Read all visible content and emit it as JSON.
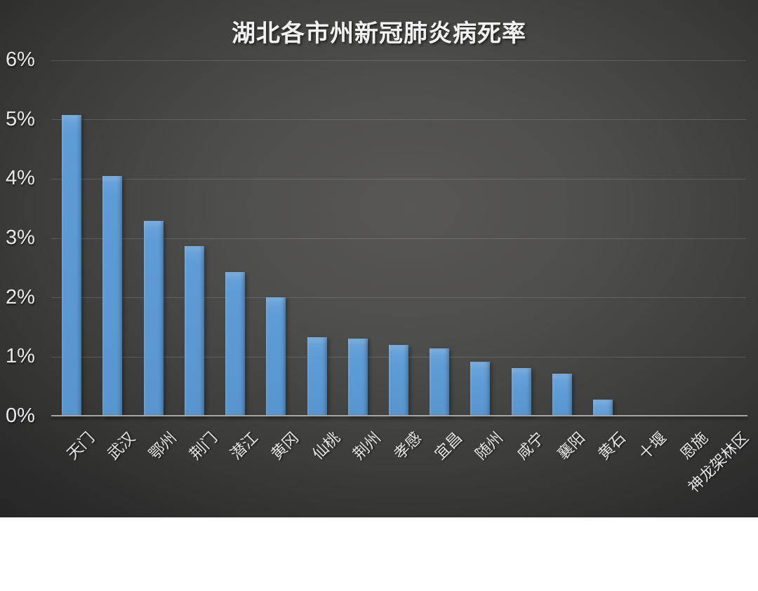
{
  "chart_data": {
    "type": "bar",
    "title": "湖北各市州新冠肺炎病死率",
    "categories": [
      "天门",
      "武汉",
      "鄂州",
      "荆门",
      "潜江",
      "黄冈",
      "仙桃",
      "荆州",
      "孝感",
      "宜昌",
      "随州",
      "咸宁",
      "襄阳",
      "黄石",
      "十堰",
      "恩施",
      "神龙架林区"
    ],
    "values": [
      5.08,
      4.05,
      3.3,
      2.87,
      2.43,
      2.01,
      1.33,
      1.31,
      1.2,
      1.14,
      0.92,
      0.81,
      0.72,
      0.28,
      0,
      0,
      0
    ],
    "unit": "%",
    "xlabel": "",
    "ylabel": "",
    "ylim": [
      0,
      6
    ],
    "ytick_labels": [
      "0%",
      "1%",
      "2%",
      "3%",
      "4%",
      "5%",
      "6%"
    ],
    "grid": true,
    "legend": false,
    "bar_color": "#5b9ad5",
    "background_color": "#3c3c3a",
    "text_color": "#e9e9e9"
  }
}
